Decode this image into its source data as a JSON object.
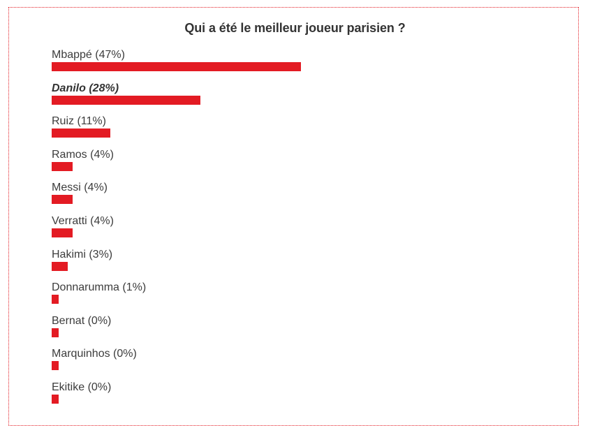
{
  "accent_color": "#e31b23",
  "title": "Qui a été le meilleur joueur parisien ?",
  "chart_data": {
    "type": "bar",
    "title": "Qui a été le meilleur joueur parisien ?",
    "orientation": "horizontal",
    "categories": [
      "Mbappé",
      "Danilo",
      "Ruiz",
      "Ramos",
      "Messi",
      "Verratti",
      "Hakimi",
      "Donnarumma",
      "Bernat",
      "Marquinhos",
      "Ekitike"
    ],
    "values": [
      47,
      28,
      11,
      4,
      4,
      4,
      3,
      1,
      0,
      0,
      0
    ],
    "unit": "%",
    "highlighted": "Danilo",
    "labels": [
      "Mbappé (47%)",
      "Danilo (28%)",
      "Ruiz (11%)",
      "Ramos (4%)",
      "Messi (4%)",
      "Verratti (4%)",
      "Hakimi (3%)",
      "Donnarumma (1%)",
      "Bernat (0%)",
      "Marquinhos (0%)",
      "Ekitike (0%)"
    ]
  }
}
